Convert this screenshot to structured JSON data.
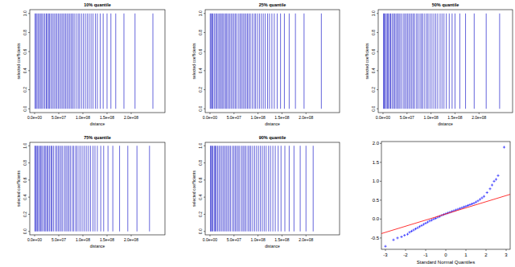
{
  "chart_data": [
    {
      "type": "bar",
      "title": "10% quantile",
      "xlabel": "distance",
      "ylabel": "selected coefficients",
      "color": "#3535d0",
      "grid": false,
      "xlim": [
        -10000000.0,
        270000000.0
      ],
      "ylim": [
        -0.04,
        1.04
      ],
      "xticks": [
        {
          "value": 0,
          "label": "0.0e+00"
        },
        {
          "value": 50000000.0,
          "label": "5.0e+07"
        },
        {
          "value": 100000000.0,
          "label": "1.0e+08"
        },
        {
          "value": 150000000.0,
          "label": "1.5e+08"
        },
        {
          "value": 200000000.0,
          "label": "2.0e+08"
        }
      ],
      "yticks": [
        {
          "value": 0,
          "label": "0.0"
        },
        {
          "value": 0.2,
          "label": "0.2"
        },
        {
          "value": 0.4,
          "label": "0.4"
        },
        {
          "value": 0.6,
          "label": "0.6"
        },
        {
          "value": 0.8,
          "label": "0.8"
        },
        {
          "value": 1,
          "label": "1.0"
        }
      ],
      "x": [
        1000000.0,
        3000000.0,
        5000000.0,
        8000000.0,
        10000000.0,
        13000000.0,
        15000000.0,
        18000000.0,
        21000000.0,
        24000000.0,
        26000000.0,
        29000000.0,
        31000000.0,
        34000000.0,
        37000000.0,
        40000000.0,
        43000000.0,
        46000000.0,
        49000000.0,
        52000000.0,
        55000000.0,
        58000000.0,
        61000000.0,
        64000000.0,
        67000000.0,
        70000000.0,
        73000000.0,
        76000000.0,
        79000000.0,
        82000000.0,
        86000000.0,
        90000000.0,
        93000000.0,
        97000000.0,
        101000000.0,
        105000000.0,
        109000000.0,
        113000000.0,
        117000000.0,
        121000000.0,
        126000000.0,
        130000000.0,
        136000000.0,
        142000000.0,
        150000000.0,
        158000000.0,
        168000000.0,
        185000000.0,
        208000000.0,
        245000000.0
      ],
      "values": [
        1,
        1,
        1,
        1,
        1,
        1,
        1,
        1,
        1,
        1,
        1,
        1,
        1,
        1,
        1,
        1,
        1,
        1,
        1,
        1,
        1,
        1,
        1,
        1,
        1,
        1,
        1,
        1,
        1,
        1,
        1,
        1,
        1,
        1,
        1,
        1,
        1,
        1,
        1,
        1,
        1,
        1,
        1,
        1,
        1,
        1,
        1,
        1,
        1,
        1
      ]
    },
    {
      "type": "bar",
      "title": "25% quantile",
      "xlabel": "distance",
      "ylabel": "selected coefficients",
      "color": "#3535d0",
      "grid": false,
      "xlim": [
        -10000000.0,
        270000000.0
      ],
      "ylim": [
        -0.04,
        1.04
      ],
      "xticks": [
        {
          "value": 0,
          "label": "0.0e+00"
        },
        {
          "value": 50000000.0,
          "label": "5.0e+07"
        },
        {
          "value": 100000000.0,
          "label": "1.0e+08"
        },
        {
          "value": 150000000.0,
          "label": "1.5e+08"
        },
        {
          "value": 200000000.0,
          "label": "2.0e+08"
        }
      ],
      "yticks": [
        {
          "value": 0,
          "label": "0.0"
        },
        {
          "value": 0.2,
          "label": "0.2"
        },
        {
          "value": 0.4,
          "label": "0.4"
        },
        {
          "value": 0.6,
          "label": "0.6"
        },
        {
          "value": 0.8,
          "label": "0.8"
        },
        {
          "value": 1,
          "label": "1.0"
        }
      ],
      "x": [
        500000.0,
        2000000.0,
        4000000.0,
        6000000.0,
        9000000.0,
        12000000.0,
        14000000.0,
        17000000.0,
        20000000.0,
        22000000.0,
        25000000.0,
        27000000.0,
        30000000.0,
        33000000.0,
        35000000.0,
        38000000.0,
        41000000.0,
        44000000.0,
        47000000.0,
        50000000.0,
        53000000.0,
        56000000.0,
        60000000.0,
        63000000.0,
        66000000.0,
        69000000.0,
        72000000.0,
        75000000.0,
        78000000.0,
        81000000.0,
        84000000.0,
        88000000.0,
        92000000.0,
        95000000.0,
        99000000.0,
        103000000.0,
        107000000.0,
        111000000.0,
        115000000.0,
        120000000.0,
        124000000.0,
        129000000.0,
        134000000.0,
        140000000.0,
        147000000.0,
        155000000.0,
        165000000.0,
        178000000.0,
        196000000.0,
        232000000.0
      ],
      "values": [
        1,
        1,
        1,
        1,
        1,
        1,
        1,
        1,
        1,
        1,
        1,
        1,
        1,
        1,
        1,
        1,
        1,
        1,
        1,
        1,
        1,
        1,
        1,
        1,
        1,
        1,
        1,
        1,
        1,
        1,
        1,
        1,
        1,
        1,
        1,
        1,
        1,
        1,
        1,
        1,
        1,
        1,
        1,
        1,
        1,
        1,
        1,
        1,
        1,
        1
      ]
    },
    {
      "type": "bar",
      "title": "50% quantile",
      "xlabel": "distance",
      "ylabel": "selected coefficients",
      "color": "#3535d0",
      "grid": false,
      "xlim": [
        -10000000.0,
        270000000.0
      ],
      "ylim": [
        -0.04,
        1.04
      ],
      "xticks": [
        {
          "value": 0,
          "label": "0.0e+00"
        },
        {
          "value": 50000000.0,
          "label": "5.0e+07"
        },
        {
          "value": 100000000.0,
          "label": "1.0e+08"
        },
        {
          "value": 150000000.0,
          "label": "1.5e+08"
        },
        {
          "value": 200000000.0,
          "label": "2.0e+08"
        }
      ],
      "yticks": [
        {
          "value": 0,
          "label": "0.0"
        },
        {
          "value": 0.2,
          "label": "0.2"
        },
        {
          "value": 0.4,
          "label": "0.4"
        },
        {
          "value": 0.6,
          "label": "0.6"
        },
        {
          "value": 0.8,
          "label": "0.8"
        },
        {
          "value": 1,
          "label": "1.0"
        }
      ],
      "x": [
        1000000.0,
        2500000.0,
        4500000.0,
        7000000.0,
        9500000.0,
        11000000.0,
        14000000.0,
        16000000.0,
        19000000.0,
        22000000.0,
        24000000.0,
        27000000.0,
        30000000.0,
        32000000.0,
        35000000.0,
        38000000.0,
        42000000.0,
        45000000.0,
        48000000.0,
        51000000.0,
        54000000.0,
        57000000.0,
        60000000.0,
        63000000.0,
        66000000.0,
        70000000.0,
        73000000.0,
        77000000.0,
        80000000.0,
        83000000.0,
        87000000.0,
        91000000.0,
        94000000.0,
        98000000.0,
        102000000.0,
        106000000.0,
        110000000.0,
        114000000.0,
        119000000.0,
        123000000.0,
        127000000.0,
        132000000.0,
        138000000.0,
        144000000.0,
        150000000.0,
        160000000.0,
        172000000.0,
        190000000.0,
        215000000.0,
        243000000.0
      ],
      "values": [
        1,
        1,
        1,
        1,
        1,
        1,
        1,
        1,
        1,
        1,
        1,
        1,
        1,
        1,
        1,
        1,
        1,
        1,
        1,
        1,
        1,
        1,
        1,
        1,
        1,
        1,
        1,
        1,
        1,
        1,
        1,
        1,
        1,
        1,
        1,
        1,
        1,
        1,
        1,
        1,
        1,
        1,
        1,
        1,
        1,
        1,
        1,
        1,
        1,
        1
      ]
    },
    {
      "type": "bar",
      "title": "75% quantile",
      "xlabel": "distance",
      "ylabel": "selected coefficients",
      "color": "#3535d0",
      "grid": false,
      "xlim": [
        -10000000.0,
        270000000.0
      ],
      "ylim": [
        -0.04,
        1.04
      ],
      "xticks": [
        {
          "value": 0,
          "label": "0.0e+00"
        },
        {
          "value": 50000000.0,
          "label": "5.0e+07"
        },
        {
          "value": 100000000.0,
          "label": "1.0e+08"
        },
        {
          "value": 150000000.0,
          "label": "1.5e+08"
        },
        {
          "value": 200000000.0,
          "label": "2.0e+08"
        }
      ],
      "yticks": [
        {
          "value": 0,
          "label": "0.0"
        },
        {
          "value": 0.2,
          "label": "0.2"
        },
        {
          "value": 0.4,
          "label": "0.4"
        },
        {
          "value": 0.6,
          "label": "0.6"
        },
        {
          "value": 0.8,
          "label": "0.8"
        },
        {
          "value": 1,
          "label": "1.0"
        }
      ],
      "x": [
        500000.0,
        2000000.0,
        3500000.0,
        6000000.0,
        8000000.0,
        11000000.0,
        13000000.0,
        15000000.0,
        18000000.0,
        21000000.0,
        23000000.0,
        26000000.0,
        28000000.0,
        31000000.0,
        34000000.0,
        36000000.0,
        39000000.0,
        43000000.0,
        46000000.0,
        49000000.0,
        52000000.0,
        55000000.0,
        58000000.0,
        62000000.0,
        65000000.0,
        68000000.0,
        71000000.0,
        74000000.0,
        78000000.0,
        81000000.0,
        85000000.0,
        88000000.0,
        92000000.0,
        96000000.0,
        100000000.0,
        104000000.0,
        108000000.0,
        112000000.0,
        116000000.0,
        121000000.0,
        125000000.0,
        130000000.0,
        137000000.0,
        143000000.0,
        152000000.0,
        162000000.0,
        176000000.0,
        193000000.0,
        212000000.0,
        238000000.0
      ],
      "values": [
        1,
        1,
        1,
        1,
        1,
        1,
        1,
        1,
        1,
        1,
        1,
        1,
        1,
        1,
        1,
        1,
        1,
        1,
        1,
        1,
        1,
        1,
        1,
        1,
        1,
        1,
        1,
        1,
        1,
        1,
        1,
        1,
        1,
        1,
        1,
        1,
        1,
        1,
        1,
        1,
        1,
        1,
        1,
        1,
        1,
        1,
        1,
        1,
        1,
        1
      ]
    },
    {
      "type": "bar",
      "title": "90% quantile",
      "xlabel": "distance",
      "ylabel": "selected coefficients",
      "color": "#3535d0",
      "grid": false,
      "xlim": [
        -10000000.0,
        270000000.0
      ],
      "ylim": [
        -0.04,
        1.04
      ],
      "xticks": [
        {
          "value": 0,
          "label": "0.0e+00"
        },
        {
          "value": 50000000.0,
          "label": "5.0e+07"
        },
        {
          "value": 100000000.0,
          "label": "1.0e+08"
        },
        {
          "value": 150000000.0,
          "label": "1.5e+08"
        },
        {
          "value": 200000000.0,
          "label": "2.0e+08"
        }
      ],
      "yticks": [
        {
          "value": 0,
          "label": "0.0"
        },
        {
          "value": 0.2,
          "label": "0.2"
        },
        {
          "value": 0.4,
          "label": "0.4"
        },
        {
          "value": 0.6,
          "label": "0.6"
        },
        {
          "value": 0.8,
          "label": "0.8"
        },
        {
          "value": 1,
          "label": "1.0"
        }
      ],
      "x": [
        1000000.0,
        2000000.0,
        4000000.0,
        6000000.0,
        9000000.0,
        11000000.0,
        13000000.0,
        16000000.0,
        19000000.0,
        22000000.0,
        25000000.0,
        28000000.0,
        31000000.0,
        34000000.0,
        37000000.0,
        40000000.0,
        43000000.0,
        47000000.0,
        50000000.0,
        53000000.0,
        56000000.0,
        59000000.0,
        62000000.0,
        66000000.0,
        69000000.0,
        72000000.0,
        75000000.0,
        79000000.0,
        82000000.0,
        85000000.0,
        89000000.0,
        93000000.0,
        97000000.0,
        101000000.0,
        105000000.0,
        109000000.0,
        113000000.0,
        117000000.0,
        122000000.0,
        126000000.0,
        131000000.0,
        136000000.0,
        142000000.0,
        148000000.0,
        156000000.0,
        165000000.0,
        175000000.0,
        188000000.0,
        200000000.0,
        215000000.0
      ],
      "values": [
        1,
        1,
        1,
        1,
        1,
        1,
        1,
        1,
        1,
        1,
        1,
        1,
        1,
        1,
        1,
        1,
        1,
        1,
        1,
        1,
        1,
        1,
        1,
        1,
        1,
        1,
        1,
        1,
        1,
        1,
        1,
        1,
        1,
        1,
        1,
        1,
        1,
        1,
        1,
        1,
        1,
        1,
        1,
        1,
        1,
        1,
        1,
        1,
        1,
        1
      ]
    },
    {
      "type": "scatter",
      "xlabel": "Standard Normal Quantiles",
      "grid": false,
      "xlim": [
        -3.2,
        3.2
      ],
      "ylim": [
        -0.8,
        2.05
      ],
      "xticks": [
        -3,
        -2,
        -1,
        0,
        1,
        2,
        3
      ],
      "yticks": [
        -0.5,
        {
          "value": 0,
          "label": "0.0"
        },
        0.5,
        {
          "value": 1,
          "label": "1.0"
        },
        1.5,
        {
          "value": 2,
          "label": "2.0"
        }
      ],
      "series": [
        {
          "type": "scatter",
          "color": "#0000ff",
          "marker": "plus",
          "x": [
            -3.0,
            -2.6,
            -2.4,
            -2.2,
            -2.05,
            -1.9,
            -1.8,
            -1.7,
            -1.6,
            -1.5,
            -1.4,
            -1.3,
            -1.2,
            -1.1,
            -1.0,
            -0.9,
            -0.8,
            -0.7,
            -0.6,
            -0.5,
            -0.4,
            -0.3,
            -0.2,
            -0.1,
            0,
            0.1,
            0.2,
            0.3,
            0.4,
            0.5,
            0.6,
            0.7,
            0.8,
            0.9,
            1.0,
            1.1,
            1.2,
            1.3,
            1.4,
            1.5,
            1.6,
            1.7,
            1.8,
            1.9,
            2.05,
            2.2,
            2.3,
            2.4,
            2.5,
            2.6,
            2.9
          ],
          "values": [
            -0.72,
            -0.55,
            -0.5,
            -0.47,
            -0.43,
            -0.4,
            -0.35,
            -0.32,
            -0.29,
            -0.26,
            -0.23,
            -0.2,
            -0.17,
            -0.14,
            -0.11,
            -0.08,
            -0.05,
            -0.03,
            0,
            0.02,
            0.05,
            0.07,
            0.1,
            0.12,
            0.14,
            0.16,
            0.18,
            0.2,
            0.22,
            0.24,
            0.26,
            0.28,
            0.3,
            0.32,
            0.34,
            0.36,
            0.38,
            0.4,
            0.42,
            0.45,
            0.48,
            0.52,
            0.56,
            0.6,
            0.7,
            0.8,
            0.9,
            1.0,
            1.05,
            1.15,
            1.9
          ]
        },
        {
          "type": "line",
          "color": "#ff0000",
          "line_style": "solid",
          "x": [
            -3.3,
            3.3
          ],
          "values": [
            -0.4,
            0.67
          ]
        }
      ]
    }
  ]
}
